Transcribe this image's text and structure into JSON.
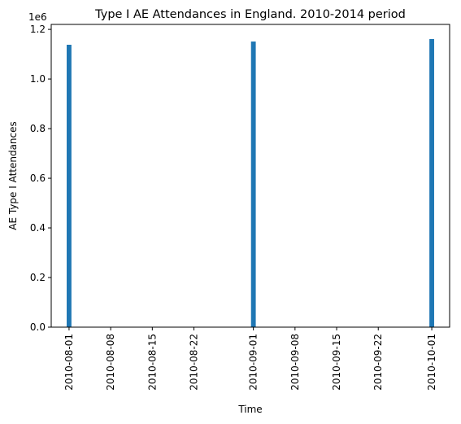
{
  "chart_data": {
    "type": "bar",
    "title": "Type I AE Attendances in England. 2010-2014 period",
    "xlabel": "Time",
    "ylabel": "AE Type I Attendances",
    "y_offset_label": "1e6",
    "x": [
      "2010-08-01",
      "2010-09-01",
      "2010-10-01"
    ],
    "values": [
      1138000,
      1151000,
      1161000
    ],
    "xlim": [
      "2010-07-29",
      "2010-10-04"
    ],
    "ylim": [
      0,
      1220000
    ],
    "x_ticks": [
      "2010-08-01",
      "2010-08-08",
      "2010-08-15",
      "2010-08-22",
      "2010-09-01",
      "2010-09-08",
      "2010-09-15",
      "2010-09-22",
      "2010-10-01"
    ],
    "y_ticks": [
      0,
      200000,
      400000,
      600000,
      800000,
      1000000,
      1200000
    ],
    "y_tick_labels": [
      "0.0",
      "0.2",
      "0.4",
      "0.6",
      "0.8",
      "1.0",
      "1.2"
    ],
    "bar_color": "#1f77b4",
    "grid": false,
    "legend": "none"
  }
}
